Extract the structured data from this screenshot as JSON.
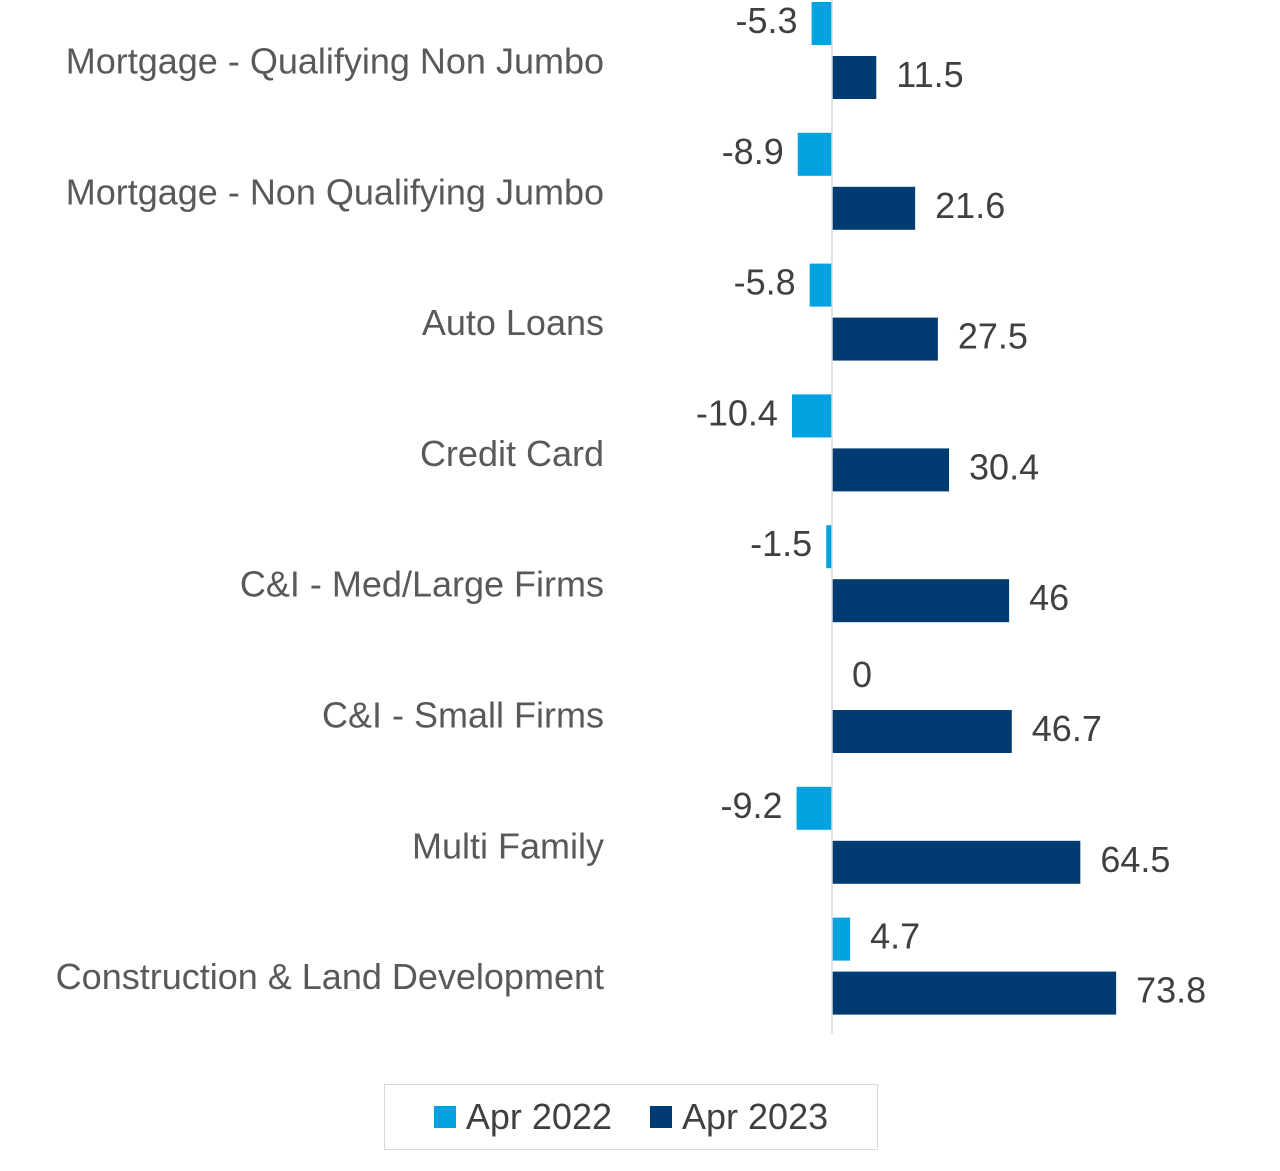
{
  "chart_data": {
    "type": "bar",
    "orientation": "horizontal",
    "categories": [
      "Mortgage - Qualifying Non Jumbo",
      "Mortgage - Non Qualifying Jumbo",
      "Auto Loans",
      "Credit Card",
      "C&I - Med/Large Firms",
      "C&I - Small Firms",
      "Multi Family",
      "Construction & Land Development"
    ],
    "series": [
      {
        "name": "Apr 2022",
        "color": "#00a3e0",
        "values": [
          -5.3,
          -8.9,
          -5.8,
          -10.4,
          -1.5,
          0,
          -9.2,
          4.7
        ],
        "labels": [
          "-5.3",
          "-8.9",
          "-5.8",
          "-10.4",
          "-1.5",
          "0",
          "-9.2",
          "4.7"
        ]
      },
      {
        "name": "Apr 2023",
        "color": "#003b72",
        "values": [
          11.5,
          21.6,
          27.5,
          30.4,
          46,
          46.7,
          64.5,
          73.8
        ],
        "labels": [
          "11.5",
          "21.6",
          "27.5",
          "30.4",
          "46",
          "46.7",
          "64.5",
          "73.8"
        ]
      }
    ],
    "xlim": [
      -11,
      75
    ],
    "grid": false,
    "legend_position": "bottom",
    "data_labels": true,
    "title": "",
    "xlabel": "",
    "ylabel": ""
  }
}
